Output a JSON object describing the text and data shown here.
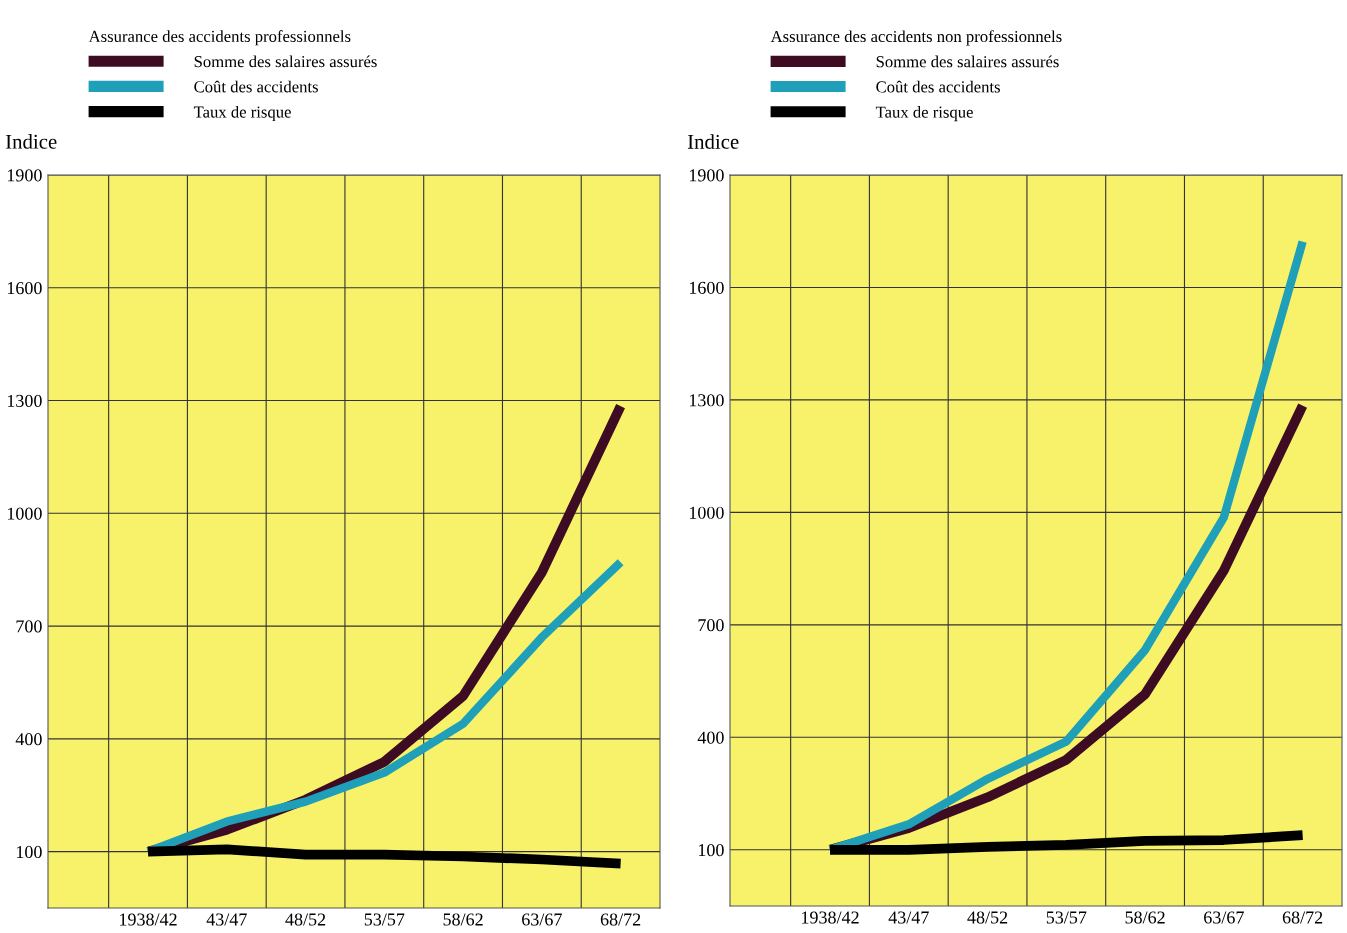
{
  "chart_data": [
    {
      "type": "line",
      "legend_title": "Assurance des accidents professionnels",
      "ylabel": "Indice",
      "categories": [
        "1938/42",
        "43/47",
        "48/52",
        "53/57",
        "58/62",
        "63/67",
        "68/72"
      ],
      "ylim": [
        -50,
        1900
      ],
      "yticks": [
        100,
        400,
        700,
        1000,
        1300,
        1600,
        1900
      ],
      "grid": true,
      "legend": "top",
      "marker": "none",
      "line_style": "solid",
      "series": [
        {
          "name": "Somme des salaires assurés",
          "color": "#3d0c22",
          "values": [
            100,
            158,
            238,
            339,
            514,
            843,
            1285
          ]
        },
        {
          "name": "Coût des accidents",
          "color": "#1f9fb8",
          "values": [
            100,
            180,
            233,
            310,
            440,
            670,
            870
          ]
        },
        {
          "name": "Taux de risque",
          "color": "#000000",
          "values": [
            100,
            106,
            92,
            92,
            87,
            79,
            68
          ]
        }
      ]
    },
    {
      "type": "line",
      "legend_title": "Assurance des accidents non professionnels",
      "ylabel": "Indice",
      "categories": [
        "1938/42",
        "43/47",
        "48/52",
        "53/57",
        "58/62",
        "63/67",
        "68/72"
      ],
      "ylim": [
        -50,
        1900
      ],
      "yticks": [
        100,
        400,
        700,
        1000,
        1300,
        1600,
        1900
      ],
      "grid": true,
      "legend": "top",
      "marker": "none",
      "line_style": "solid",
      "series": [
        {
          "name": "Somme des salaires assurés",
          "color": "#3d0c22",
          "values": [
            100,
            158,
            240,
            340,
            515,
            845,
            1285
          ]
        },
        {
          "name": "Coût des accidents",
          "color": "#1f9fb8",
          "values": [
            100,
            168,
            289,
            389,
            633,
            987,
            1722
          ]
        },
        {
          "name": "Taux de risque",
          "color": "#000000",
          "values": [
            100,
            100,
            108,
            113,
            124,
            126,
            139
          ]
        }
      ]
    }
  ]
}
